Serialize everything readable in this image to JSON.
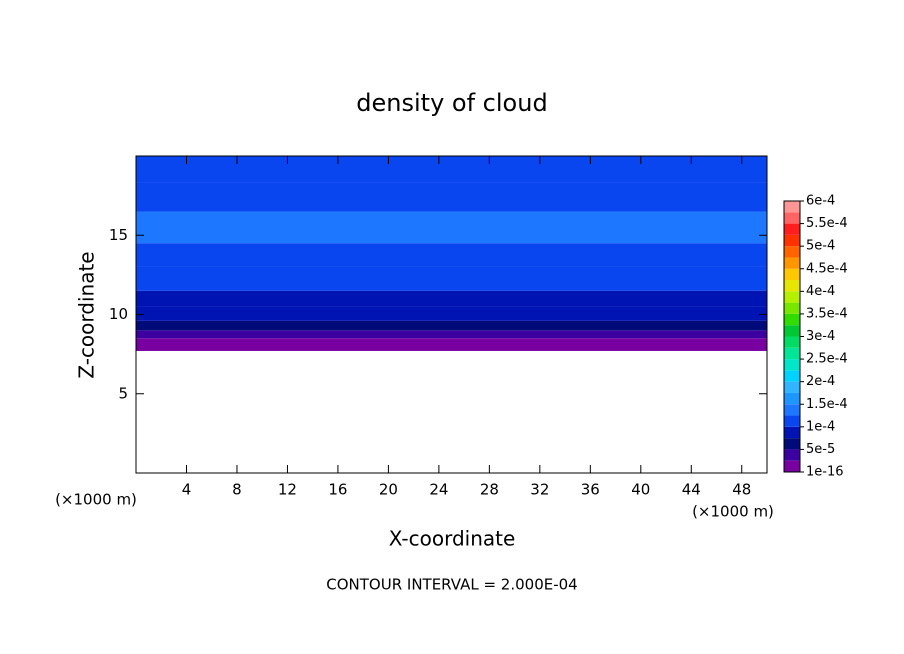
{
  "chart_data": {
    "type": "contour",
    "title": "density of cloud",
    "x_label": "X-coordinate",
    "y_label": "Z-coordinate",
    "x_unit": "(×1000 m)",
    "y_unit": "(×1000 m)",
    "footer": "CONTOUR INTERVAL = 2.000E-04",
    "xlim": [
      0,
      50
    ],
    "xticks": [
      4,
      8,
      12,
      16,
      20,
      24,
      28,
      32,
      36,
      40,
      44,
      48
    ],
    "ylim": [
      0,
      20
    ],
    "yticks": [
      5,
      10,
      15
    ],
    "profile": {
      "z": [
        7.7,
        8.5,
        9.0,
        9.6,
        10.5,
        11.5,
        13,
        14.5,
        16.5,
        18.3
      ],
      "values": [
        2e-05,
        4e-05,
        6e-05,
        8e-05,
        9e-05,
        0.000105,
        0.00012,
        0.00013,
        0.00012,
        0.00011
      ]
    },
    "colorbar_ticks": [
      {
        "value": 1e-16,
        "label": "1e-16"
      },
      {
        "value": 5e-05,
        "label": "5e-5"
      },
      {
        "value": 0.0001,
        "label": "1e-4"
      },
      {
        "value": 0.00015,
        "label": "1.5e-4"
      },
      {
        "value": 0.0002,
        "label": "2e-4"
      },
      {
        "value": 0.00025,
        "label": "2.5e-4"
      },
      {
        "value": 0.0003,
        "label": "3e-4"
      },
      {
        "value": 0.00035,
        "label": "3.5e-4"
      },
      {
        "value": 0.0004,
        "label": "4e-4"
      },
      {
        "value": 0.00045,
        "label": "4.5e-4"
      },
      {
        "value": 0.0005,
        "label": "5e-4"
      },
      {
        "value": 0.00055,
        "label": "5.5e-4"
      },
      {
        "value": 0.0006,
        "label": "6e-4"
      }
    ],
    "colors": [
      "#7800a0",
      "#3c00a0",
      "#000a78",
      "#0014b4",
      "#0a46f0",
      "#1e78ff",
      "#1e96ff",
      "#32b4ff",
      "#00d2ff",
      "#00e6c8",
      "#00e696",
      "#00dc64",
      "#00c832",
      "#32dc00",
      "#78e600",
      "#b4f000",
      "#e6e600",
      "#ffc800",
      "#ff9600",
      "#ff6400",
      "#ff3200",
      "#ff1e1e",
      "#ff6464",
      "#ff9696"
    ]
  }
}
